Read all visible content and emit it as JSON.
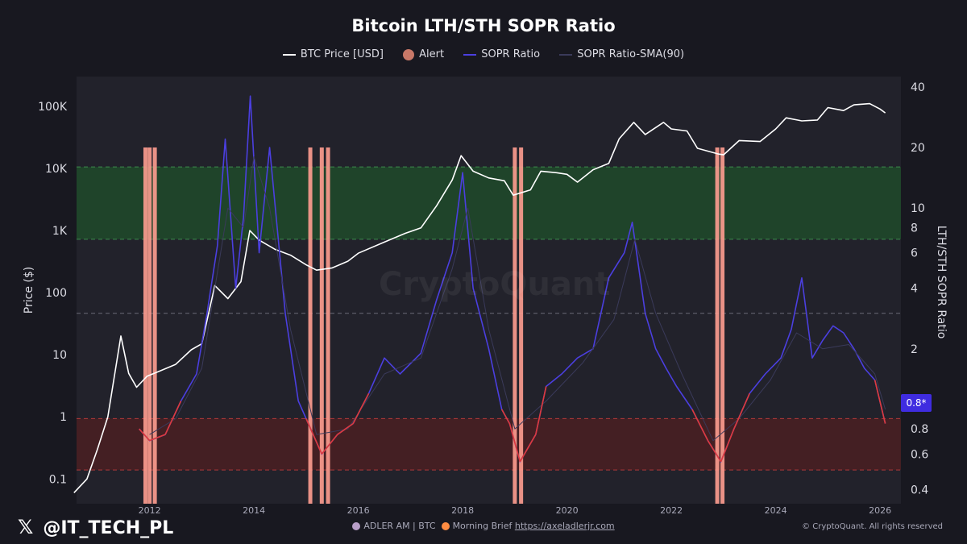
{
  "title": "Bitcoin LTH/STH SOPR Ratio",
  "legend": [
    {
      "label": "BTC Price [USD]",
      "swatch": "line",
      "color": "#ffffff"
    },
    {
      "label": "Alert",
      "swatch": "dot",
      "color": "#c87868"
    },
    {
      "label": "SOPR Ratio",
      "swatch": "line",
      "color": "#4b3fe0"
    },
    {
      "label": "SOPR Ratio-SMA(90)",
      "swatch": "line",
      "color": "#3a3a5a"
    }
  ],
  "watermark": "CryptoQuant",
  "handle": "@IT_TECH_PL",
  "x_glyph": "𝕏",
  "footer": {
    "left": "ADLER AM | BTC",
    "middle": "Morning Brief",
    "link": "https://axeladlerjr.com",
    "copyright": "© CryptoQuant. All rights reserved"
  },
  "badge": "0.8*",
  "chart_data": {
    "type": "line",
    "title": "Bitcoin LTH/STH SOPR Ratio",
    "xlabel": "",
    "ylabel": "Price ($)",
    "y2label": "LTH/STH SOPR Ratio",
    "xlim": [
      2010.6,
      2026.4
    ],
    "ylim": [
      0.04,
      300000
    ],
    "y2lim": [
      0.34,
      45
    ],
    "y_scale": "log",
    "y2_scale": "log",
    "x_ticks": [
      2012,
      2014,
      2016,
      2018,
      2020,
      2022,
      2024,
      2026
    ],
    "y_ticks": [
      0.1,
      1,
      10,
      100,
      1000,
      10000,
      100000
    ],
    "y_tick_labels": [
      "0.1",
      "1",
      "10",
      "100",
      "1K",
      "10K",
      "100K"
    ],
    "y2_ticks": [
      0.4,
      0.6,
      0.8,
      1,
      2,
      4,
      6,
      8,
      10,
      20,
      40
    ],
    "y2_tick_labels": [
      "0.4",
      "0.6",
      "0.8",
      "",
      "2",
      "4",
      "6",
      "8",
      "10",
      "20",
      "40"
    ],
    "zones": [
      {
        "name": "green",
        "y2_from": 7,
        "y2_to": 16,
        "color": "#1e4a2a"
      },
      {
        "name": "red",
        "y2_from": 0.5,
        "y2_to": 0.9,
        "color": "#4a1e22"
      }
    ],
    "dashed_lines_y2": [
      16,
      7,
      3,
      0.9,
      0.5
    ],
    "series": [
      {
        "name": "BTC Price [USD]",
        "axis": "left",
        "color": "#ffffff",
        "x": [
          2010.55,
          2010.8,
          2011.0,
          2011.2,
          2011.45,
          2011.6,
          2011.75,
          2011.95,
          2012.2,
          2012.5,
          2012.8,
          2013.0,
          2013.25,
          2013.5,
          2013.75,
          2013.92,
          2014.1,
          2014.4,
          2014.7,
          2015.0,
          2015.2,
          2015.5,
          2015.8,
          2016.0,
          2016.5,
          2016.9,
          2017.2,
          2017.5,
          2017.8,
          2017.97,
          2018.2,
          2018.5,
          2018.8,
          2018.97,
          2019.3,
          2019.5,
          2019.8,
          2020.0,
          2020.2,
          2020.5,
          2020.8,
          2021.0,
          2021.28,
          2021.5,
          2021.85,
          2022.0,
          2022.3,
          2022.5,
          2022.9,
          2023.0,
          2023.3,
          2023.7,
          2024.0,
          2024.2,
          2024.5,
          2024.8,
          2025.0,
          2025.3,
          2025.5,
          2025.8,
          2026.0,
          2026.1
        ],
        "values": [
          0.06,
          0.1,
          0.3,
          1.0,
          20,
          5,
          3,
          4.5,
          5.5,
          7,
          12,
          15,
          130,
          80,
          150,
          1000,
          700,
          500,
          400,
          280,
          230,
          250,
          320,
          430,
          650,
          900,
          1100,
          2500,
          6500,
          16000,
          9000,
          7000,
          6300,
          3700,
          4500,
          9000,
          8500,
          8000,
          6000,
          9500,
          12000,
          30000,
          55000,
          35000,
          55000,
          43000,
          40000,
          21000,
          17000,
          16500,
          28000,
          27000,
          43000,
          65000,
          58000,
          60000,
          95000,
          85000,
          105000,
          110000,
          90000,
          78000
        ]
      },
      {
        "name": "SOPR Ratio",
        "axis": "right",
        "color": "#4b3fe0",
        "x": [
          2011.8,
          2012.0,
          2012.3,
          2012.6,
          2012.9,
          2013.1,
          2013.3,
          2013.45,
          2013.65,
          2013.8,
          2013.93,
          2014.1,
          2014.3,
          2014.6,
          2014.85,
          2015.0,
          2015.3,
          2015.6,
          2015.9,
          2016.2,
          2016.5,
          2016.8,
          2017.2,
          2017.5,
          2017.8,
          2018.0,
          2018.2,
          2018.5,
          2018.75,
          2018.9,
          2019.1,
          2019.4,
          2019.6,
          2019.9,
          2020.2,
          2020.5,
          2020.8,
          2021.1,
          2021.25,
          2021.5,
          2021.7,
          2021.9,
          2022.1,
          2022.4,
          2022.7,
          2022.95,
          2023.2,
          2023.5,
          2023.8,
          2024.1,
          2024.3,
          2024.5,
          2024.7,
          2024.9,
          2025.1,
          2025.3,
          2025.5,
          2025.7,
          2025.9,
          2026.1
        ],
        "values": [
          0.8,
          0.7,
          0.75,
          1.1,
          1.5,
          3.0,
          6.5,
          22,
          4,
          9,
          36,
          6,
          20,
          3,
          1.1,
          0.9,
          0.6,
          0.75,
          0.85,
          1.2,
          1.8,
          1.5,
          1.9,
          3.5,
          6,
          15,
          4,
          2,
          1.0,
          0.85,
          0.55,
          0.75,
          1.3,
          1.5,
          1.8,
          2.0,
          4.5,
          6,
          8.5,
          3,
          2.0,
          1.6,
          1.3,
          1.0,
          0.7,
          0.55,
          0.8,
          1.2,
          1.5,
          1.8,
          2.5,
          4.5,
          1.8,
          2.2,
          2.6,
          2.4,
          2.0,
          1.6,
          1.4,
          0.85
        ]
      },
      {
        "name": "SOPR Ratio-SMA(90)",
        "axis": "right",
        "color": "#3a3a5a",
        "x": [
          2012.0,
          2012.5,
          2013.0,
          2013.5,
          2013.8,
          2014.0,
          2014.3,
          2014.7,
          2015.2,
          2015.8,
          2016.5,
          2017.2,
          2017.8,
          2018.1,
          2018.5,
          2019.0,
          2019.6,
          2020.3,
          2020.9,
          2021.3,
          2021.7,
          2022.2,
          2022.8,
          2023.3,
          2023.9,
          2024.4,
          2024.9,
          2025.4,
          2025.9,
          2026.1
        ],
        "values": [
          0.75,
          0.9,
          1.6,
          10,
          8,
          18,
          10,
          2.5,
          0.75,
          0.8,
          1.5,
          1.8,
          5,
          10,
          2.5,
          0.8,
          1.1,
          1.7,
          2.8,
          7,
          3,
          1.5,
          0.7,
          0.9,
          1.4,
          2.4,
          2.0,
          2.1,
          1.5,
          1.0
        ]
      }
    ],
    "alerts": [
      {
        "x": 2011.92,
        "color": "#ff9d90"
      },
      {
        "x": 2012.0,
        "color": "#ff9d90"
      },
      {
        "x": 2012.1,
        "color": "#ff9d90"
      },
      {
        "x": 2015.08,
        "color": "#ff9d90"
      },
      {
        "x": 2015.3,
        "color": "#ff9d90"
      },
      {
        "x": 2015.42,
        "color": "#ff9d90"
      },
      {
        "x": 2019.0,
        "color": "#ff9d90"
      },
      {
        "x": 2019.12,
        "color": "#ff9d90"
      },
      {
        "x": 2022.88,
        "color": "#ff9d90"
      },
      {
        "x": 2022.98,
        "color": "#ff9d90"
      }
    ],
    "latest_value": "0.8*"
  }
}
